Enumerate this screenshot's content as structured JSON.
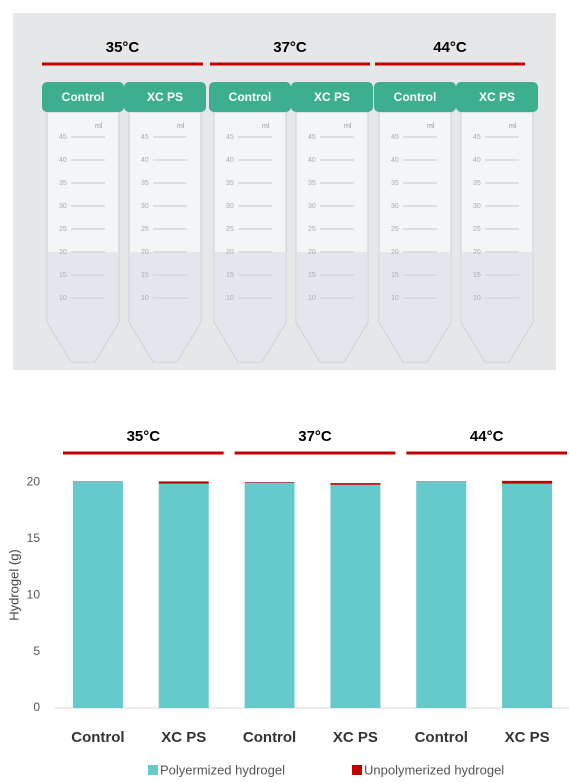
{
  "photo": {
    "groups": [
      "35°C",
      "37°C",
      "44°C"
    ],
    "caps": [
      "Control",
      "XC PS",
      "Control",
      "XC PS",
      "Control",
      "XC PS"
    ],
    "scale_unit": "ml",
    "scale": [
      45,
      40,
      35,
      30,
      25,
      20,
      15,
      10
    ]
  },
  "chart_data": {
    "type": "stacked-bar",
    "groups": [
      "35°C",
      "37°C",
      "44°C"
    ],
    "categories": [
      "Control",
      "XC PS",
      "Control",
      "XC PS",
      "Control",
      "XC PS"
    ],
    "ylabel": "Hydrogel (g)",
    "ylim": [
      0,
      22
    ],
    "yticks": [
      0,
      5,
      10,
      15,
      20
    ],
    "series": [
      {
        "name": "Polyermized hydrogel",
        "color": "#66c9cc",
        "values": [
          20.1,
          19.9,
          20.0,
          19.8,
          20.1,
          19.9
        ]
      },
      {
        "name": "Unpolymerized hydrogel",
        "color": "#c00000",
        "values": [
          0.02,
          0.2,
          0.05,
          0.15,
          0.02,
          0.25
        ]
      }
    ]
  }
}
